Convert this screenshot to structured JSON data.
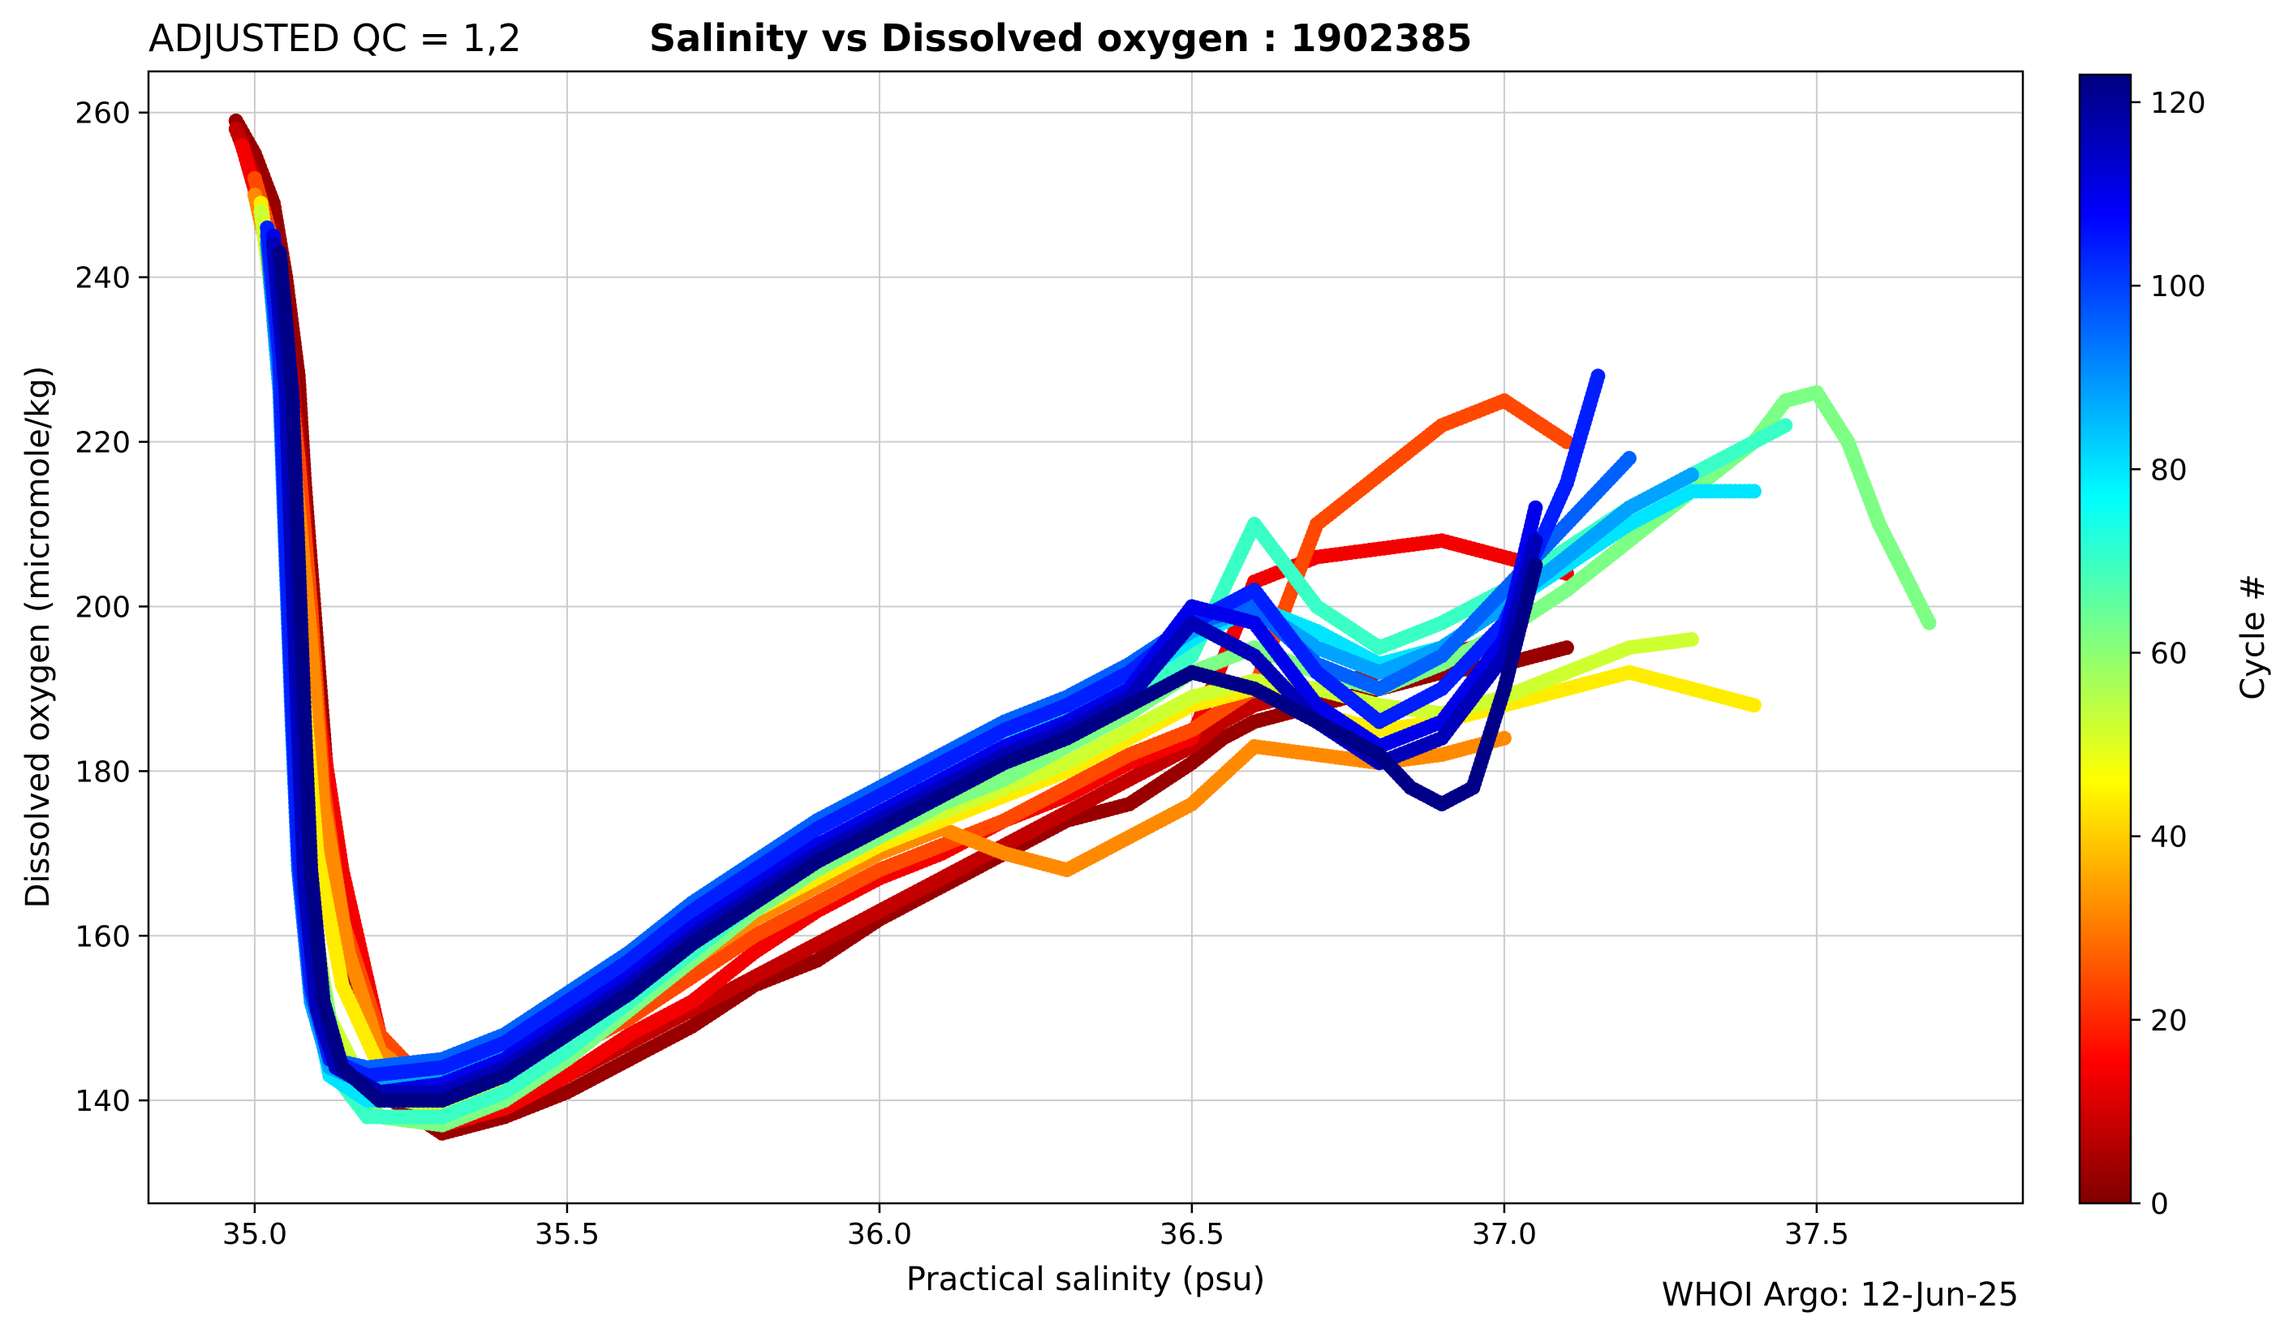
{
  "header": {
    "qc_label": "ADJUSTED QC = 1,2",
    "title": "Salinity vs Dissolved oxygen : 1902385"
  },
  "footer": {
    "credit": "WHOI Argo: 12-Jun-25"
  },
  "chart_data": {
    "type": "scatter",
    "title": "Salinity vs Dissolved oxygen : 1902385",
    "xlabel": "Practical salinity  (psu)",
    "ylabel": "Dissolved oxygen  (micromole/kg)",
    "xlim": [
      34.83,
      37.83
    ],
    "ylim": [
      127.5,
      265
    ],
    "xticks": [
      35.0,
      35.5,
      36.0,
      36.5,
      37.0,
      37.5
    ],
    "xtick_labels": [
      "35.0",
      "35.5",
      "36.0",
      "36.5",
      "37.0",
      "37.5"
    ],
    "yticks": [
      140,
      160,
      180,
      200,
      220,
      240,
      260
    ],
    "ytick_labels": [
      "140",
      "160",
      "180",
      "200",
      "220",
      "240",
      "260"
    ],
    "grid": true,
    "colorbar": {
      "label": "Cycle #",
      "range": [
        0,
        123
      ],
      "ticks": [
        0,
        20,
        40,
        60,
        80,
        100,
        120
      ],
      "tick_labels": [
        "0",
        "20",
        "40",
        "60",
        "80",
        "100",
        "120"
      ],
      "colormap": "jet",
      "colors": [
        "#7f0000",
        "#ff0000",
        "#ff8000",
        "#ffff00",
        "#80ff80",
        "#00ffff",
        "#0080ff",
        "#0000ff",
        "#00007f"
      ]
    },
    "series": [
      {
        "cycle": 3,
        "x": [
          34.97,
          35.0,
          35.03,
          35.05,
          35.07,
          35.08,
          35.1,
          35.12,
          35.16,
          35.22,
          35.3,
          35.4,
          35.5,
          35.6,
          35.7,
          35.8,
          35.9,
          36.0,
          36.1,
          36.2,
          36.3,
          36.4,
          36.5,
          36.55,
          36.6,
          36.7,
          36.8,
          36.9,
          37.0,
          37.1
        ],
        "y": [
          259,
          255,
          249,
          240,
          228,
          215,
          195,
          175,
          155,
          140,
          136,
          138,
          141,
          145,
          149,
          154,
          157,
          162,
          166,
          170,
          174,
          176,
          181,
          184,
          186,
          188,
          190,
          192,
          193,
          195
        ]
      },
      {
        "cycle": 8,
        "x": [
          34.97,
          35.0,
          35.04,
          35.06,
          35.08,
          35.09,
          35.11,
          35.14,
          35.2,
          35.3,
          35.4,
          35.5,
          35.6,
          35.7,
          35.8,
          35.9,
          36.0,
          36.1,
          36.2,
          36.3,
          36.4,
          36.5,
          36.55,
          36.6,
          36.7,
          36.8,
          36.9,
          37.0
        ],
        "y": [
          258,
          252,
          240,
          228,
          212,
          198,
          182,
          165,
          146,
          138,
          139,
          143,
          147,
          151,
          155,
          159,
          163,
          167,
          171,
          175,
          179,
          183,
          186,
          188,
          190,
          192,
          194,
          196
        ]
      },
      {
        "cycle": 14,
        "x": [
          34.98,
          35.01,
          35.04,
          35.06,
          35.08,
          35.1,
          35.14,
          35.2,
          35.3,
          35.4,
          35.5,
          35.6,
          35.7,
          35.8,
          35.9,
          36.0,
          36.1,
          36.2,
          36.3,
          36.4,
          36.5,
          36.6,
          36.7,
          36.8,
          36.9,
          37.0,
          37.1
        ],
        "y": [
          256,
          248,
          236,
          222,
          205,
          188,
          168,
          148,
          137,
          139,
          143,
          148,
          152,
          158,
          163,
          167,
          170,
          174,
          177,
          181,
          184,
          203,
          206,
          207,
          208,
          206,
          204
        ]
      },
      {
        "cycle": 24,
        "x": [
          35.0,
          35.03,
          35.05,
          35.07,
          35.09,
          35.11,
          35.14,
          35.2,
          35.3,
          35.4,
          35.5,
          35.6,
          35.7,
          35.8,
          35.9,
          36.0,
          36.1,
          36.2,
          36.3,
          36.4,
          36.5,
          36.6,
          36.7,
          36.8,
          36.9,
          37.0,
          37.1
        ],
        "y": [
          252,
          244,
          232,
          218,
          200,
          178,
          162,
          148,
          140,
          142,
          146,
          150,
          155,
          160,
          164,
          168,
          171,
          174,
          178,
          182,
          185,
          190,
          210,
          216,
          222,
          225,
          220
        ]
      },
      {
        "cycle": 32,
        "x": [
          35.0,
          35.03,
          35.05,
          35.07,
          35.09,
          35.11,
          35.15,
          35.2,
          35.3,
          35.4,
          35.5,
          35.6,
          35.7,
          35.8,
          35.9,
          36.0,
          36.1,
          36.2,
          36.3,
          36.4,
          36.5,
          36.6,
          36.7,
          36.8,
          36.9,
          37.0
        ],
        "y": [
          250,
          240,
          228,
          212,
          196,
          176,
          158,
          146,
          140,
          143,
          147,
          152,
          157,
          162,
          166,
          170,
          173,
          170,
          168,
          172,
          176,
          183,
          182,
          181,
          182,
          184
        ]
      },
      {
        "cycle": 44,
        "x": [
          35.01,
          35.03,
          35.05,
          35.06,
          35.08,
          35.1,
          35.14,
          35.2,
          35.3,
          35.4,
          35.5,
          35.6,
          35.7,
          35.8,
          35.9,
          36.0,
          36.1,
          36.2,
          36.3,
          36.4,
          36.5,
          36.6,
          36.7,
          36.8,
          36.9,
          37.0,
          37.1,
          37.2,
          37.3,
          37.4
        ],
        "y": [
          249,
          238,
          224,
          206,
          188,
          170,
          154,
          144,
          140,
          142,
          147,
          152,
          158,
          163,
          167,
          171,
          174,
          177,
          180,
          184,
          188,
          190,
          187,
          185,
          186,
          188,
          190,
          192,
          190,
          188
        ]
      },
      {
        "cycle": 52,
        "x": [
          35.01,
          35.03,
          35.05,
          35.06,
          35.07,
          35.09,
          35.12,
          35.18,
          35.3,
          35.4,
          35.5,
          35.6,
          35.7,
          35.8,
          35.9,
          36.0,
          36.1,
          36.2,
          36.3,
          36.4,
          36.5,
          36.6,
          36.7,
          36.8,
          36.9,
          37.0,
          37.1,
          37.2,
          37.3
        ],
        "y": [
          248,
          236,
          220,
          202,
          184,
          164,
          150,
          141,
          139,
          141,
          146,
          152,
          158,
          164,
          168,
          172,
          175,
          178,
          181,
          185,
          189,
          191,
          190,
          188,
          187,
          189,
          192,
          195,
          196
        ]
      },
      {
        "cycle": 62,
        "x": [
          35.02,
          35.04,
          35.05,
          35.06,
          35.08,
          35.1,
          35.13,
          35.2,
          35.3,
          35.4,
          35.5,
          35.6,
          35.7,
          35.8,
          35.9,
          36.0,
          36.1,
          36.2,
          36.3,
          36.4,
          36.5,
          36.6,
          36.7,
          36.8,
          36.9,
          37.0,
          37.1,
          37.2,
          37.3,
          37.4,
          37.45,
          37.5,
          37.55,
          37.6,
          37.68
        ],
        "y": [
          246,
          232,
          214,
          196,
          176,
          158,
          146,
          138,
          137,
          140,
          145,
          151,
          157,
          163,
          168,
          172,
          176,
          179,
          183,
          187,
          192,
          195,
          192,
          190,
          193,
          197,
          202,
          208,
          214,
          220,
          225,
          226,
          220,
          210,
          198
        ]
      },
      {
        "cycle": 70,
        "x": [
          35.02,
          35.04,
          35.05,
          35.06,
          35.07,
          35.09,
          35.12,
          35.18,
          35.3,
          35.4,
          35.5,
          35.6,
          35.7,
          35.8,
          35.9,
          36.0,
          36.1,
          36.2,
          36.3,
          36.4,
          36.5,
          36.6,
          36.7,
          36.8,
          36.9,
          37.0,
          37.1,
          37.2,
          37.3,
          37.4,
          37.45
        ],
        "y": [
          245,
          230,
          210,
          190,
          172,
          156,
          144,
          138,
          138,
          141,
          146,
          152,
          158,
          164,
          169,
          173,
          177,
          181,
          185,
          189,
          194,
          210,
          200,
          195,
          198,
          202,
          207,
          212,
          216,
          220,
          222
        ]
      },
      {
        "cycle": 80,
        "x": [
          35.02,
          35.04,
          35.05,
          35.06,
          35.07,
          35.09,
          35.12,
          35.18,
          35.3,
          35.4,
          35.5,
          35.6,
          35.7,
          35.8,
          35.9,
          36.0,
          36.1,
          36.2,
          36.3,
          36.4,
          36.5,
          36.6,
          36.7,
          36.8,
          36.9,
          37.0,
          37.1,
          37.2,
          37.3,
          37.4
        ],
        "y": [
          244,
          228,
          208,
          188,
          170,
          154,
          143,
          140,
          140,
          143,
          148,
          154,
          160,
          166,
          171,
          175,
          179,
          183,
          187,
          191,
          196,
          200,
          197,
          193,
          195,
          200,
          205,
          210,
          214,
          214
        ]
      },
      {
        "cycle": 88,
        "x": [
          35.02,
          35.04,
          35.05,
          35.06,
          35.07,
          35.09,
          35.12,
          35.18,
          35.3,
          35.4,
          35.5,
          35.6,
          35.7,
          35.8,
          35.9,
          36.0,
          36.1,
          36.2,
          36.3,
          36.4,
          36.5,
          36.6,
          36.7,
          36.8,
          36.9,
          37.0,
          37.1,
          37.2,
          37.3
        ],
        "y": [
          244,
          226,
          205,
          185,
          168,
          152,
          144,
          142,
          143,
          146,
          151,
          157,
          163,
          168,
          173,
          177,
          181,
          185,
          188,
          192,
          197,
          200,
          195,
          192,
          195,
          200,
          206,
          212,
          216
        ]
      },
      {
        "cycle": 96,
        "x": [
          35.02,
          35.04,
          35.05,
          35.06,
          35.07,
          35.09,
          35.12,
          35.18,
          35.3,
          35.4,
          35.5,
          35.6,
          35.7,
          35.8,
          35.9,
          36.0,
          36.1,
          36.2,
          36.3,
          36.4,
          36.5,
          36.6,
          36.7,
          36.8,
          36.9,
          37.0,
          37.1,
          37.2
        ],
        "y": [
          245,
          228,
          206,
          186,
          168,
          153,
          145,
          144,
          145,
          148,
          153,
          158,
          164,
          169,
          174,
          178,
          182,
          186,
          189,
          193,
          198,
          200,
          193,
          190,
          194,
          202,
          210,
          218
        ]
      },
      {
        "cycle": 104,
        "x": [
          35.02,
          35.04,
          35.05,
          35.06,
          35.07,
          35.09,
          35.12,
          35.18,
          35.3,
          35.4,
          35.5,
          35.6,
          35.7,
          35.8,
          35.9,
          36.0,
          36.1,
          36.2,
          36.3,
          36.4,
          36.5,
          36.6,
          36.7,
          36.8,
          36.9,
          37.0,
          37.1,
          37.15
        ],
        "y": [
          246,
          230,
          208,
          188,
          170,
          154,
          145,
          143,
          144,
          147,
          152,
          157,
          163,
          168,
          173,
          177,
          181,
          185,
          188,
          192,
          198,
          202,
          192,
          186,
          190,
          198,
          215,
          228
        ]
      },
      {
        "cycle": 110,
        "x": [
          35.03,
          35.05,
          35.06,
          35.07,
          35.08,
          35.1,
          35.13,
          35.2,
          35.3,
          35.4,
          35.5,
          35.6,
          35.7,
          35.8,
          35.9,
          36.0,
          36.1,
          36.2,
          36.3,
          36.4,
          36.5,
          36.6,
          36.7,
          36.8,
          36.9,
          37.0,
          37.05
        ],
        "y": [
          245,
          228,
          206,
          186,
          168,
          152,
          144,
          141,
          142,
          145,
          150,
          155,
          161,
          166,
          171,
          175,
          179,
          183,
          186,
          190,
          200,
          198,
          188,
          183,
          186,
          196,
          212
        ]
      },
      {
        "cycle": 116,
        "x": [
          35.03,
          35.05,
          35.06,
          35.07,
          35.08,
          35.1,
          35.13,
          35.2,
          35.3,
          35.4,
          35.5,
          35.6,
          35.7,
          35.8,
          35.9,
          36.0,
          36.1,
          36.2,
          36.3,
          36.4,
          36.5,
          36.6,
          36.7,
          36.8,
          36.9,
          37.0,
          37.05
        ],
        "y": [
          244,
          226,
          204,
          184,
          166,
          151,
          144,
          141,
          141,
          144,
          149,
          154,
          160,
          165,
          170,
          174,
          178,
          182,
          185,
          189,
          198,
          194,
          186,
          181,
          184,
          194,
          208
        ]
      },
      {
        "cycle": 122,
        "x": [
          35.04,
          35.06,
          35.07,
          35.08,
          35.09,
          35.11,
          35.14,
          35.2,
          35.3,
          35.4,
          35.5,
          35.6,
          35.7,
          35.8,
          35.9,
          36.0,
          36.1,
          36.2,
          36.3,
          36.4,
          36.5,
          36.6,
          36.7,
          36.8,
          36.85,
          36.9,
          36.95,
          37.0,
          37.05
        ],
        "y": [
          243,
          226,
          206,
          186,
          168,
          152,
          144,
          140,
          140,
          143,
          148,
          153,
          159,
          164,
          169,
          173,
          177,
          181,
          184,
          188,
          192,
          190,
          186,
          182,
          178,
          176,
          178,
          190,
          205
        ]
      }
    ]
  }
}
